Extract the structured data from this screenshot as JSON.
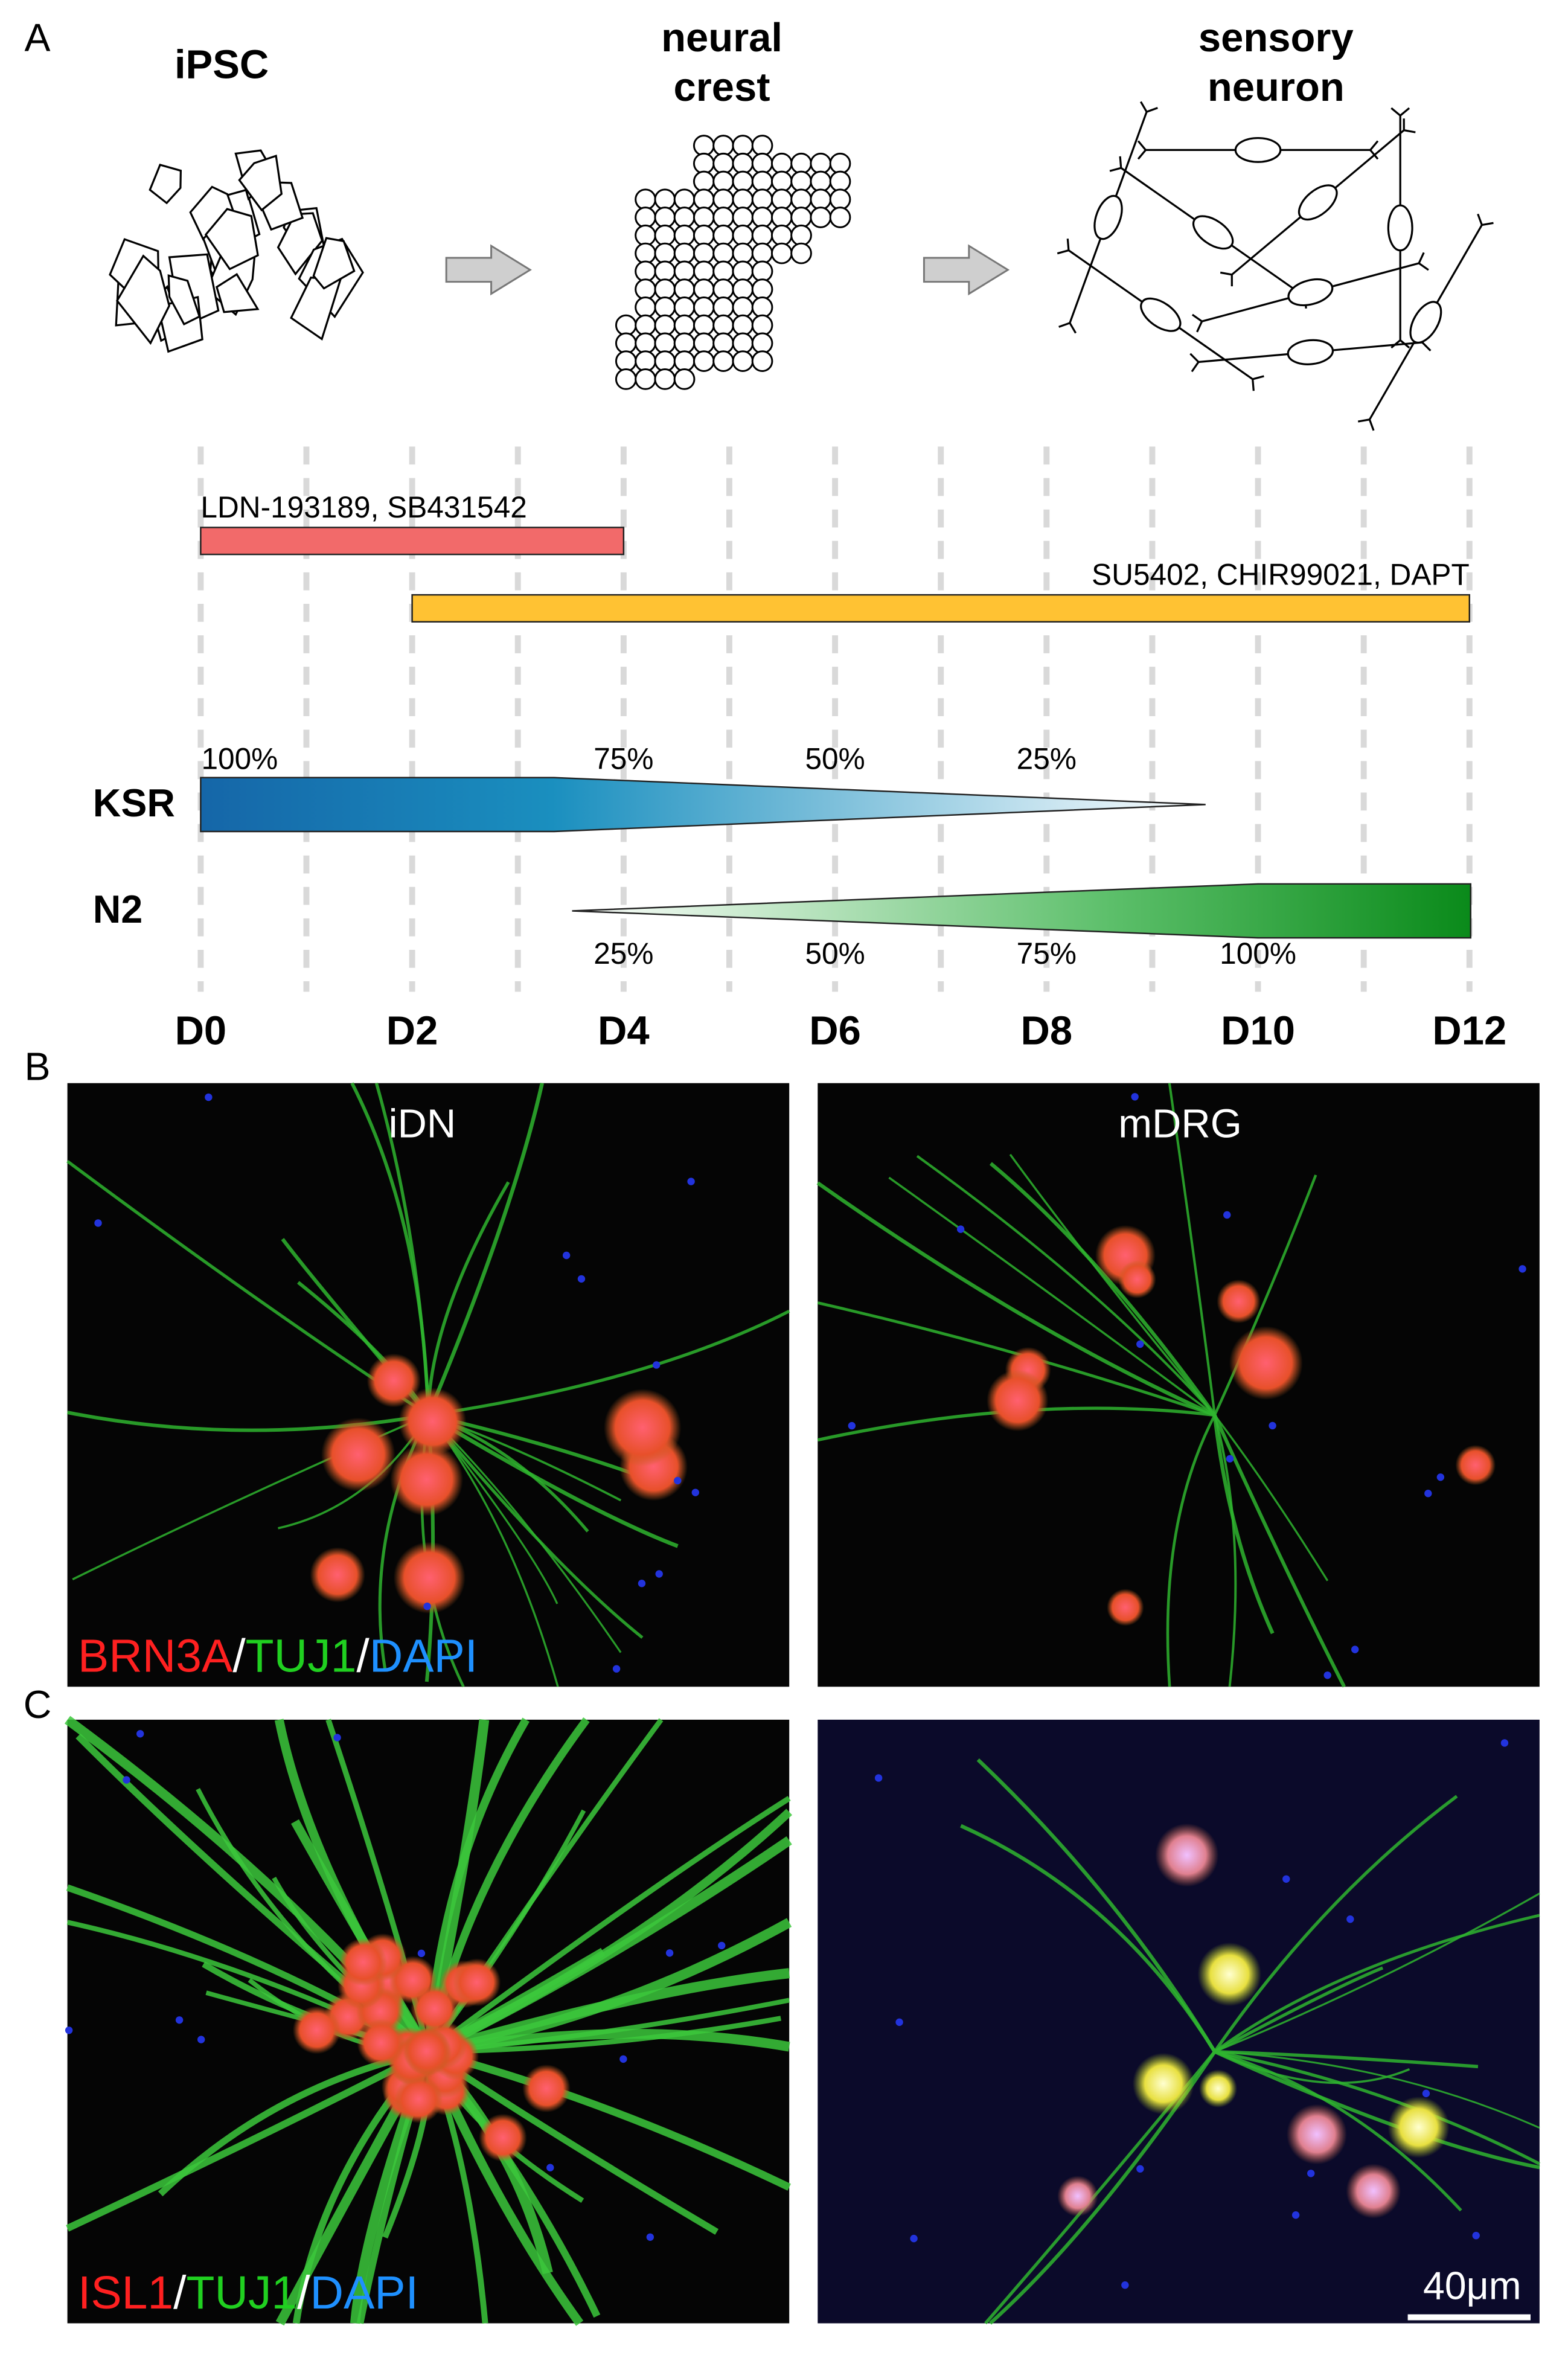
{
  "panel_labels": [
    "A",
    "B",
    "C"
  ],
  "stages": [
    {
      "lines": [
        "iPSC"
      ]
    },
    {
      "lines": [
        "neural",
        "crest"
      ]
    },
    {
      "lines": [
        "sensory",
        "neuron"
      ]
    }
  ],
  "treatments": [
    {
      "label": "LDN-193189, SB431542"
    },
    {
      "label": "SU5402, CHIR99021, DAPT"
    }
  ],
  "media": [
    {
      "name": "KSR",
      "percentages": [
        "100%",
        "75%",
        "50%",
        "25%"
      ]
    },
    {
      "name": "N2",
      "percentages": [
        "25%",
        "50%",
        "75%",
        "100%"
      ]
    }
  ],
  "days": [
    "D0",
    "D2",
    "D4",
    "D6",
    "D8",
    "D10",
    "D12"
  ],
  "images": {
    "columns": [
      "iDN",
      "mDRG"
    ],
    "stains": [
      [
        "BRN3A",
        "/",
        "TUJ1",
        "/",
        "DAPI"
      ],
      [
        "ISL1",
        "/",
        "TUJ1",
        "/",
        "DAPI"
      ]
    ],
    "scale_bar": "40μm"
  }
}
